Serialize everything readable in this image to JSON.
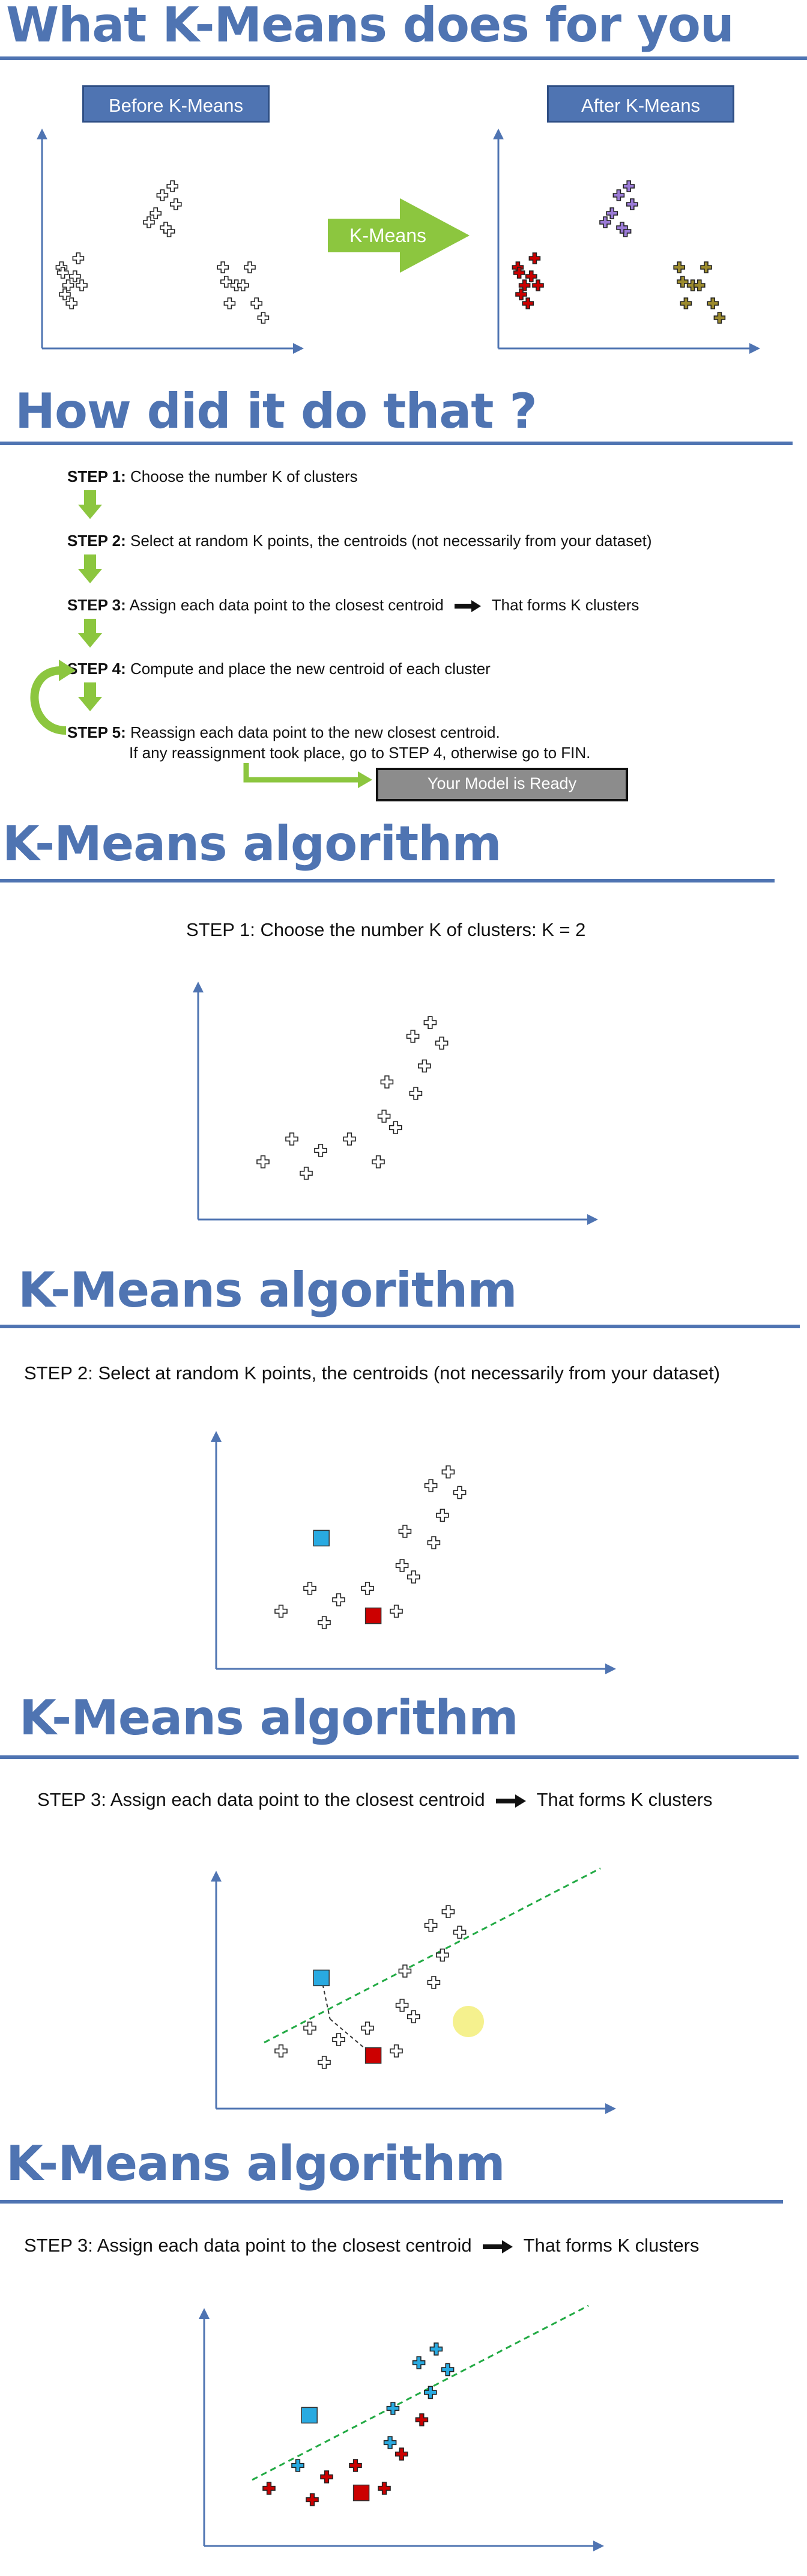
{
  "section1": {
    "title": "What K-Means does for you",
    "before_label": "Before K-Means",
    "after_label": "After K-Means",
    "arrow_label": "K-Means"
  },
  "section2": {
    "title": "How did it do that ?",
    "steps": [
      {
        "label": "STEP 1:",
        "text": " Choose the number K of clusters"
      },
      {
        "label": "STEP 2:",
        "text": " Select at random K points, the centroids (not necessarily from your dataset)"
      },
      {
        "label": "STEP 3:",
        "text": " Assign each data point to the closest centroid"
      },
      {
        "label": "STEP 4:",
        "text": " Compute and place the new centroid of each cluster"
      },
      {
        "label": "STEP 5:",
        "text": " Reassign each data point to the new closest centroid."
      }
    ],
    "step3_suffix": "That forms K clusters",
    "step5_line2": "If any reassignment took place, go to STEP 4, otherwise go to FIN.",
    "ready_label": "Your Model is Ready"
  },
  "section3": {
    "title": "K-Means algorithm",
    "caption_label": "STEP 1:",
    "caption_text": " Choose the number K of clusters: K = 2"
  },
  "section4": {
    "title": "K-Means algorithm",
    "caption_label": "STEP 2:",
    "caption_text": " Select at random K points, the centroids (not necessarily from your dataset)"
  },
  "section5": {
    "title": "K-Means algorithm",
    "caption_label": "STEP 3:",
    "caption_text": " Assign each data point to the closest centroid",
    "caption_suffix": "That forms K clusters"
  },
  "section6": {
    "title": "K-Means algorithm",
    "caption_label": "STEP 3:",
    "caption_text": " Assign each data point to the closest centroid",
    "caption_suffix": "That forms K clusters"
  },
  "colors": {
    "accent_blue": "#4f74b2",
    "arrow_green": "#8cc63f",
    "cluster_red": "#cc0000",
    "cluster_blue": "#29aae1",
    "point_gray": "#ffffff",
    "divider_green": "#22aa44"
  },
  "chart_data": [
    {
      "type": "scatter",
      "title": "",
      "points": [
        [
          12,
          3
        ],
        [
          13,
          2
        ],
        [
          14,
          2.5
        ],
        [
          12.5,
          1.5
        ],
        [
          13.5,
          1
        ],
        [
          14.5,
          3.5
        ],
        [
          15,
          2
        ],
        [
          12.2,
          2.7
        ],
        [
          26,
          6
        ],
        [
          27,
          7
        ],
        [
          28,
          5
        ],
        [
          29,
          6.5
        ],
        [
          25,
          5.5
        ],
        [
          27.5,
          5.2
        ],
        [
          28.5,
          7.5
        ],
        [
          36,
          3
        ],
        [
          38,
          2
        ],
        [
          40,
          3
        ],
        [
          37,
          1
        ],
        [
          39,
          2
        ],
        [
          41,
          1
        ],
        [
          36.5,
          2.2
        ],
        [
          42,
          0.2
        ]
      ],
      "clusters_after": [
        "red",
        "red",
        "red",
        "red",
        "red",
        "red",
        "red",
        "red",
        "purple",
        "purple",
        "purple",
        "purple",
        "purple",
        "purple",
        "purple",
        "olive",
        "olive",
        "olive",
        "olive",
        "olive",
        "olive",
        "olive",
        "olive"
      ]
    },
    {
      "type": "scatter",
      "title": "K = 2",
      "points": [
        [
          1,
          2
        ],
        [
          2,
          3
        ],
        [
          2.5,
          1.5
        ],
        [
          3,
          2.5
        ],
        [
          4,
          3
        ],
        [
          5,
          2
        ],
        [
          5.2,
          4
        ],
        [
          5.6,
          3.5
        ],
        [
          5.3,
          5.5
        ],
        [
          6.3,
          5
        ],
        [
          6.6,
          6.2
        ],
        [
          6.2,
          7.5
        ],
        [
          6.8,
          8.1
        ],
        [
          7.2,
          7.2
        ]
      ],
      "centroids": [
        [
          2.4,
          5.2
        ],
        [
          4.2,
          1.8
        ]
      ]
    }
  ]
}
